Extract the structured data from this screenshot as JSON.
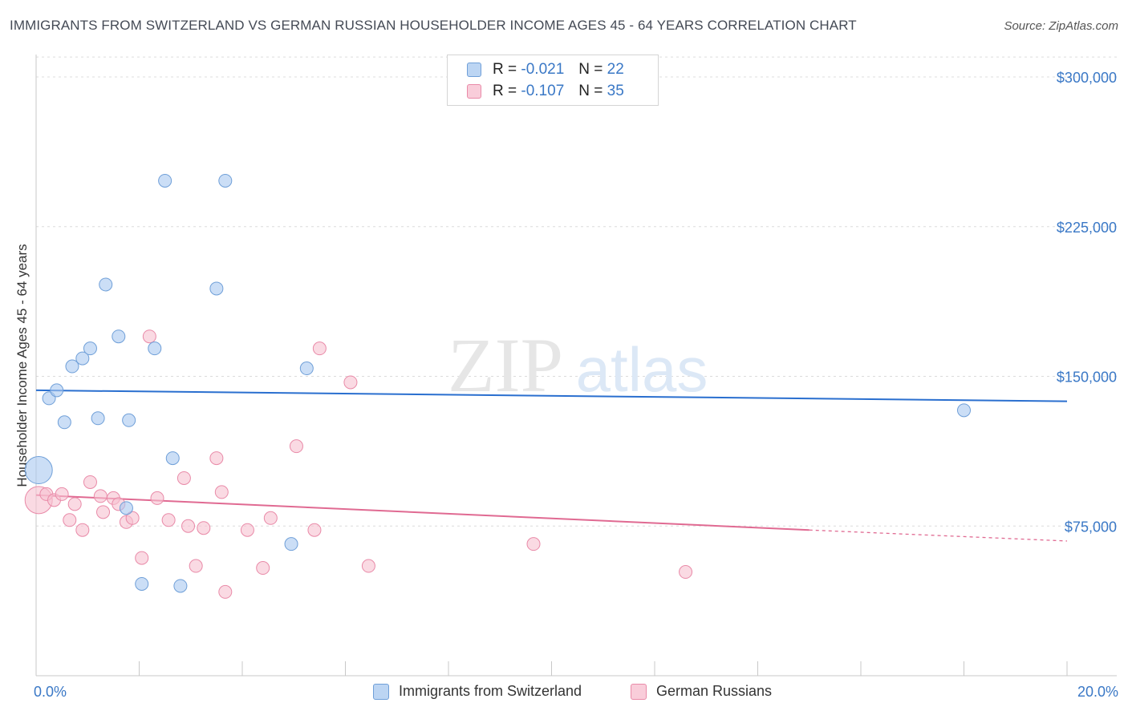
{
  "title": "IMMIGRANTS FROM SWITZERLAND VS GERMAN RUSSIAN HOUSEHOLDER INCOME AGES 45 - 64 YEARS CORRELATION CHART",
  "source": "Source: ZipAtlas.com",
  "watermark": {
    "zip": "ZIP",
    "atlas": "atlas"
  },
  "legend": {
    "r_label": "R =",
    "n_label": "N =",
    "series1": {
      "r": "-0.021",
      "n": "22"
    },
    "series2": {
      "r": "-0.107",
      "n": "35"
    }
  },
  "chart_data": {
    "type": "scatter",
    "title": "IMMIGRANTS FROM SWITZERLAND VS GERMAN RUSSIAN HOUSEHOLDER INCOME AGES 45 - 64 YEARS CORRELATION CHART",
    "xlabel": "",
    "ylabel": "Householder Income Ages 45 - 64 years",
    "xlim": [
      0,
      20
    ],
    "ylim": [
      0,
      310000
    ],
    "x_tick_labels": [
      "0.0%",
      "20.0%"
    ],
    "y_ticks": [
      75000,
      150000,
      225000,
      300000
    ],
    "y_tick_labels": [
      "$75,000",
      "$150,000",
      "$225,000",
      "$300,000"
    ],
    "series": [
      {
        "name": "Immigrants from Switzerland",
        "color": "#a9c8f0",
        "edge": "#6f9fd8",
        "trend_color": "#2a6fcf",
        "trend": {
          "x0": 0,
          "y0": 143000,
          "x1": 20,
          "y1": 137500
        },
        "points": [
          {
            "x": 0.05,
            "y": 103000,
            "big": true
          },
          {
            "x": 0.25,
            "y": 139000
          },
          {
            "x": 0.4,
            "y": 143000
          },
          {
            "x": 0.55,
            "y": 127000
          },
          {
            "x": 0.7,
            "y": 155000
          },
          {
            "x": 0.9,
            "y": 159000
          },
          {
            "x": 1.05,
            "y": 164000
          },
          {
            "x": 1.2,
            "y": 129000
          },
          {
            "x": 1.35,
            "y": 196000
          },
          {
            "x": 1.6,
            "y": 170000
          },
          {
            "x": 1.75,
            "y": 84000
          },
          {
            "x": 1.8,
            "y": 128000
          },
          {
            "x": 2.05,
            "y": 46000
          },
          {
            "x": 2.3,
            "y": 164000
          },
          {
            "x": 2.5,
            "y": 248000
          },
          {
            "x": 2.65,
            "y": 109000
          },
          {
            "x": 2.8,
            "y": 45000
          },
          {
            "x": 3.5,
            "y": 194000
          },
          {
            "x": 3.67,
            "y": 248000
          },
          {
            "x": 4.95,
            "y": 66000
          },
          {
            "x": 5.25,
            "y": 154000
          },
          {
            "x": 18.0,
            "y": 133000
          }
        ]
      },
      {
        "name": "German Russians",
        "color": "#f7c1d1",
        "edge": "#e98aa8",
        "trend_color": "#e06a92",
        "trend": {
          "x0": 0,
          "y0": 90500,
          "x1": 15,
          "y1": 73000,
          "dash_x1": 20,
          "dash_y1": 67500
        },
        "points": [
          {
            "x": 0.05,
            "y": 88000,
            "big": true
          },
          {
            "x": 0.2,
            "y": 91000
          },
          {
            "x": 0.35,
            "y": 88000
          },
          {
            "x": 0.5,
            "y": 91000
          },
          {
            "x": 0.65,
            "y": 78000
          },
          {
            "x": 0.75,
            "y": 86000
          },
          {
            "x": 0.9,
            "y": 73000
          },
          {
            "x": 1.05,
            "y": 97000
          },
          {
            "x": 1.25,
            "y": 90000
          },
          {
            "x": 1.3,
            "y": 82000
          },
          {
            "x": 1.5,
            "y": 89000
          },
          {
            "x": 1.6,
            "y": 86000
          },
          {
            "x": 1.75,
            "y": 77000
          },
          {
            "x": 1.87,
            "y": 79000
          },
          {
            "x": 2.05,
            "y": 59000
          },
          {
            "x": 2.2,
            "y": 170000
          },
          {
            "x": 2.35,
            "y": 89000
          },
          {
            "x": 2.57,
            "y": 78000
          },
          {
            "x": 2.87,
            "y": 99000
          },
          {
            "x": 2.95,
            "y": 75000
          },
          {
            "x": 3.1,
            "y": 55000
          },
          {
            "x": 3.25,
            "y": 74000
          },
          {
            "x": 3.5,
            "y": 109000
          },
          {
            "x": 3.6,
            "y": 92000
          },
          {
            "x": 3.67,
            "y": 42000
          },
          {
            "x": 4.1,
            "y": 73000
          },
          {
            "x": 4.4,
            "y": 54000
          },
          {
            "x": 4.55,
            "y": 79000
          },
          {
            "x": 5.05,
            "y": 115000
          },
          {
            "x": 5.4,
            "y": 73000
          },
          {
            "x": 5.5,
            "y": 164000
          },
          {
            "x": 6.1,
            "y": 147000
          },
          {
            "x": 6.45,
            "y": 55000
          },
          {
            "x": 9.65,
            "y": 66000
          },
          {
            "x": 12.6,
            "y": 52000
          }
        ]
      }
    ]
  }
}
